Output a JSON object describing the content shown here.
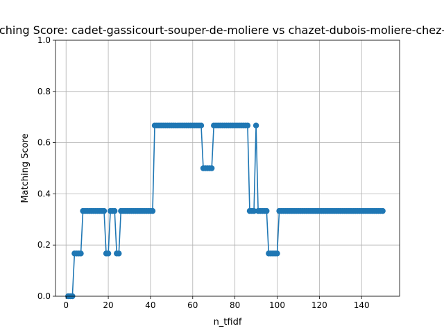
{
  "chart_data": {
    "type": "line",
    "title": "Matching Score: cadet-gassicourt-souper-de-moliere vs chazet-dubois-moliere-chez-ninon",
    "xlabel": "n_tfidf",
    "ylabel": "Matching Score",
    "xlim": [
      -5,
      158
    ],
    "ylim": [
      0,
      1.0
    ],
    "x_ticks": [
      0,
      20,
      40,
      60,
      80,
      100,
      120,
      140
    ],
    "y_ticks": [
      0.0,
      0.2,
      0.4,
      0.6,
      0.8,
      1.0
    ],
    "x_tick_labels": [
      "0",
      "20",
      "40",
      "60",
      "80",
      "100",
      "120",
      "140"
    ],
    "y_tick_labels": [
      "0.0",
      "0.2",
      "0.4",
      "0.6",
      "0.8",
      "1.0"
    ],
    "grid": true,
    "series": [
      {
        "color": "#1f77b4",
        "marker": "circle",
        "x": [
          1,
          2,
          3,
          4,
          5,
          6,
          7,
          8,
          9,
          10,
          11,
          12,
          13,
          14,
          15,
          16,
          17,
          18,
          19,
          20,
          21,
          22,
          23,
          24,
          25,
          26,
          27,
          28,
          29,
          30,
          31,
          32,
          33,
          34,
          35,
          36,
          37,
          38,
          39,
          40,
          41,
          42,
          43,
          44,
          45,
          46,
          47,
          48,
          49,
          50,
          51,
          52,
          53,
          54,
          55,
          56,
          57,
          58,
          59,
          60,
          61,
          62,
          63,
          64,
          65,
          66,
          67,
          68,
          69,
          70,
          71,
          72,
          73,
          74,
          75,
          76,
          77,
          78,
          79,
          80,
          81,
          82,
          83,
          84,
          85,
          86,
          87,
          88,
          89,
          90,
          91,
          92,
          93,
          94,
          95,
          96,
          97,
          98,
          99,
          100,
          101,
          102,
          103,
          104,
          105,
          106,
          107,
          108,
          109,
          110,
          111,
          112,
          113,
          114,
          115,
          116,
          117,
          118,
          119,
          120,
          121,
          122,
          123,
          124,
          125,
          126,
          127,
          128,
          129,
          130,
          131,
          132,
          133,
          134,
          135,
          136,
          137,
          138,
          139,
          140,
          141,
          142,
          143,
          144,
          145,
          146,
          147,
          148,
          149,
          150
        ],
        "y": [
          0,
          0,
          0,
          0.167,
          0.167,
          0.167,
          0.167,
          0.333,
          0.333,
          0.333,
          0.333,
          0.333,
          0.333,
          0.333,
          0.333,
          0.333,
          0.333,
          0.333,
          0.167,
          0.167,
          0.333,
          0.333,
          0.333,
          0.167,
          0.167,
          0.333,
          0.333,
          0.333,
          0.333,
          0.333,
          0.333,
          0.333,
          0.333,
          0.333,
          0.333,
          0.333,
          0.333,
          0.333,
          0.333,
          0.333,
          0.333,
          0.667,
          0.667,
          0.667,
          0.667,
          0.667,
          0.667,
          0.667,
          0.667,
          0.667,
          0.667,
          0.667,
          0.667,
          0.667,
          0.667,
          0.667,
          0.667,
          0.667,
          0.667,
          0.667,
          0.667,
          0.667,
          0.667,
          0.667,
          0.5,
          0.5,
          0.5,
          0.5,
          0.5,
          0.667,
          0.667,
          0.667,
          0.667,
          0.667,
          0.667,
          0.667,
          0.667,
          0.667,
          0.667,
          0.667,
          0.667,
          0.667,
          0.667,
          0.667,
          0.667,
          0.667,
          0.333,
          0.333,
          0.333,
          0.667,
          0.333,
          0.333,
          0.333,
          0.333,
          0.333,
          0.167,
          0.167,
          0.167,
          0.167,
          0.167,
          0.333,
          0.333,
          0.333,
          0.333,
          0.333,
          0.333,
          0.333,
          0.333,
          0.333,
          0.333,
          0.333,
          0.333,
          0.333,
          0.333,
          0.333,
          0.333,
          0.333,
          0.333,
          0.333,
          0.333,
          0.333,
          0.333,
          0.333,
          0.333,
          0.333,
          0.333,
          0.333,
          0.333,
          0.333,
          0.333,
          0.333,
          0.333,
          0.333,
          0.333,
          0.333,
          0.333,
          0.333,
          0.333,
          0.333,
          0.333,
          0.333,
          0.333,
          0.333,
          0.333,
          0.333,
          0.333,
          0.333,
          0.333,
          0.333,
          0.333
        ]
      }
    ]
  }
}
